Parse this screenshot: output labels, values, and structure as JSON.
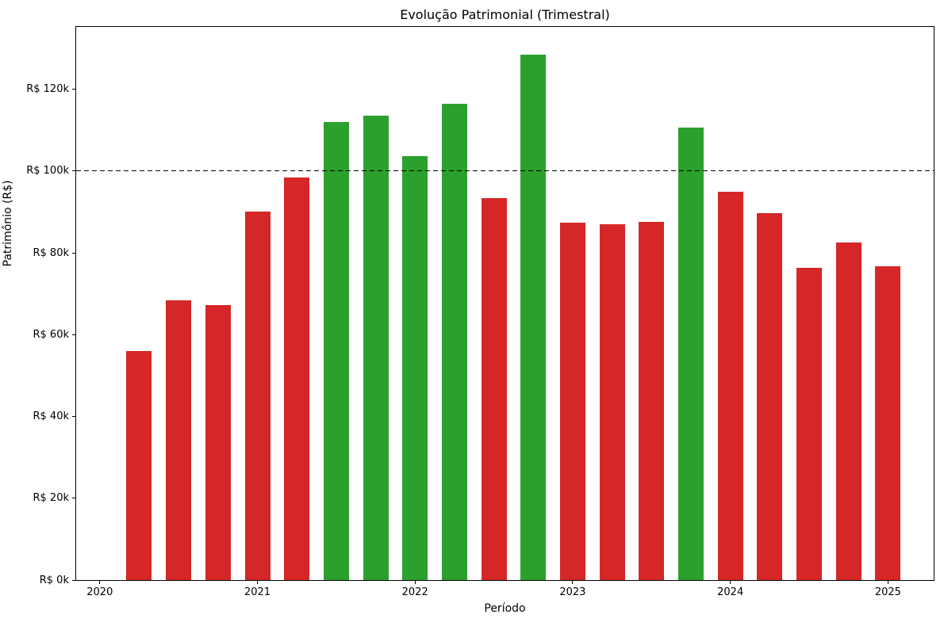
{
  "chart_data": {
    "type": "bar",
    "title": "Evolução Patrimonial (Trimestral)",
    "xlabel": "Período",
    "ylabel": "Patrimônio (R$)",
    "unit": "R$ thousands",
    "categories": [
      "2020-Q2",
      "2020-Q3",
      "2020-Q4",
      "2021-Q1",
      "2021-Q2",
      "2021-Q3",
      "2021-Q4",
      "2022-Q1",
      "2022-Q2",
      "2022-Q3",
      "2022-Q4",
      "2023-Q1",
      "2023-Q2",
      "2023-Q3",
      "2023-Q4",
      "2024-Q1",
      "2024-Q2",
      "2024-Q3",
      "2024-Q4",
      "2025-Q1"
    ],
    "x_years": [
      2020.25,
      2020.5,
      2020.75,
      2021.0,
      2021.25,
      2021.5,
      2021.75,
      2022.0,
      2022.25,
      2022.5,
      2022.75,
      2023.0,
      2023.25,
      2023.5,
      2023.75,
      2024.0,
      2024.25,
      2024.5,
      2024.75,
      2025.0
    ],
    "values": [
      55.9,
      68.4,
      67.3,
      90.1,
      98.4,
      111.9,
      113.6,
      103.6,
      116.5,
      93.3,
      128.4,
      87.4,
      86.9,
      87.5,
      110.7,
      94.9,
      89.6,
      76.4,
      82.5,
      76.8
    ],
    "bar_colors": [
      "#d62728",
      "#d62728",
      "#d62728",
      "#d62728",
      "#d62728",
      "#2ca02c",
      "#2ca02c",
      "#2ca02c",
      "#2ca02c",
      "#d62728",
      "#2ca02c",
      "#d62728",
      "#d62728",
      "#d62728",
      "#2ca02c",
      "#d62728",
      "#d62728",
      "#d62728",
      "#d62728",
      "#d62728"
    ],
    "colors": {
      "above_threshold": "#2ca02c",
      "below_threshold": "#d62728",
      "threshold_line": "#000000",
      "background": "#ffffff",
      "text": "#000000"
    },
    "threshold": {
      "value": 100,
      "label": "R$ 100k",
      "style": "dashed"
    },
    "x_tick_labels": [
      "2020",
      "2021",
      "2022",
      "2023",
      "2024",
      "2025"
    ],
    "x_tick_years": [
      2020,
      2021,
      2022,
      2023,
      2024,
      2025
    ],
    "y_tick_labels": [
      "R$ 0k",
      "R$ 20k",
      "R$ 40k",
      "R$ 60k",
      "R$ 80k",
      "R$ 100k",
      "R$ 120k"
    ],
    "y_tick_values": [
      0,
      20,
      40,
      60,
      80,
      100,
      120
    ],
    "xlim": [
      2019.85,
      2025.29
    ],
    "ylim": [
      0,
      135.2
    ],
    "grid": false,
    "legend": "none"
  }
}
